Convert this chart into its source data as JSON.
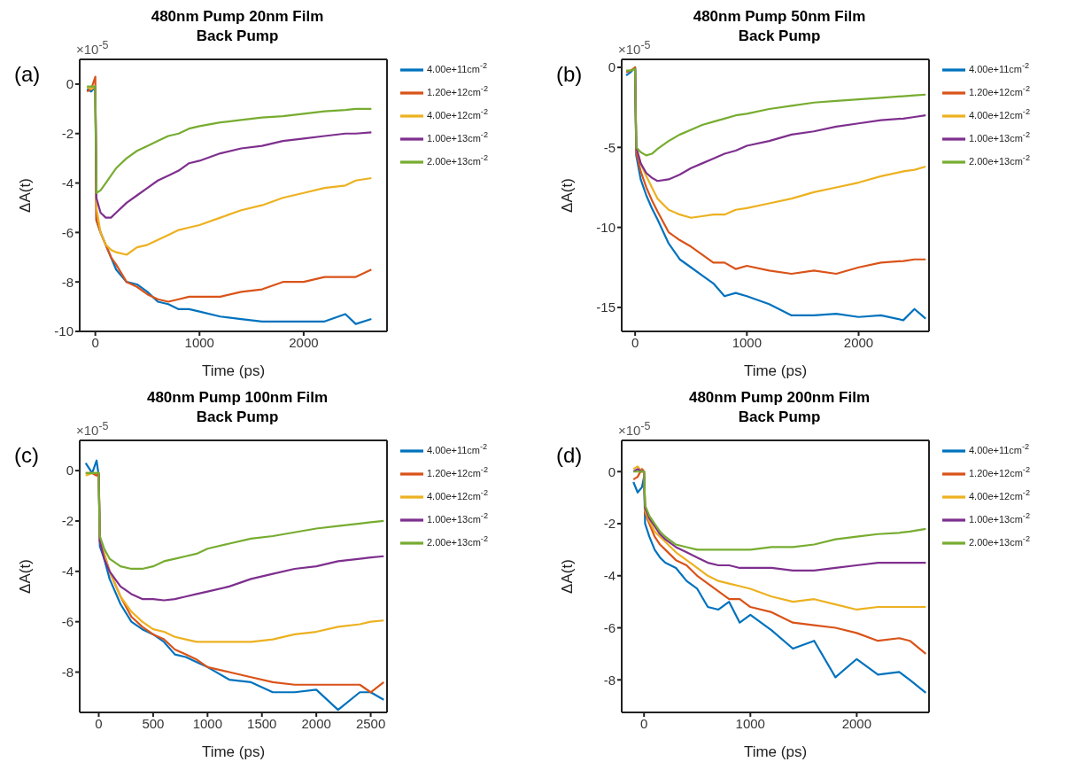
{
  "chart_data": [
    {
      "type": "line",
      "title": "480nm Pump 20nm Film",
      "subtitle": "Back Pump",
      "xlabel": "Time (ps)",
      "ylabel": "ΔA(t)",
      "annotations": [
        "(a)",
        "×10$^{-5}$"
      ],
      "legend": "right",
      "xlim": [
        -150,
        2800
      ],
      "xticks": [
        0,
        1000,
        2000
      ],
      "ylim": [
        -10,
        1
      ],
      "yticks": [
        -10,
        -8,
        -6,
        -4,
        -2,
        0
      ],
      "x": [
        -80,
        -40,
        0,
        10,
        50,
        100,
        150,
        200,
        300,
        400,
        500,
        600,
        700,
        800,
        900,
        1000,
        1200,
        1400,
        1600,
        1800,
        2000,
        2200,
        2400,
        2500,
        2650
      ],
      "series": [
        {
          "name": "4.00e+11cm$^{-2}$",
          "color": "#0072bd",
          "values": [
            -0.2,
            -0.3,
            -0.1,
            -5.5,
            -6.0,
            -6.5,
            -7.0,
            -7.5,
            -8.0,
            -8.1,
            -8.4,
            -8.8,
            -8.9,
            -9.1,
            -9.1,
            -9.2,
            -9.4,
            -9.5,
            -9.6,
            -9.6,
            -9.6,
            -9.6,
            -9.3,
            -9.7,
            -9.5
          ]
        },
        {
          "name": "1.20e+12cm$^{-2}$",
          "color": "#d95319",
          "values": [
            -0.3,
            -0.2,
            0.3,
            -5.5,
            -6.0,
            -6.5,
            -7.0,
            -7.3,
            -8.0,
            -8.2,
            -8.5,
            -8.7,
            -8.8,
            -8.7,
            -8.6,
            -8.6,
            -8.6,
            -8.4,
            -8.3,
            -8.0,
            -8.0,
            -7.8,
            -7.8,
            -7.8,
            -7.5
          ]
        },
        {
          "name": "4.00e+12cm$^{-2}$",
          "color": "#edb120",
          "values": [
            -0.1,
            -0.2,
            -0.1,
            -5.0,
            -6.0,
            -6.5,
            -6.7,
            -6.8,
            -6.9,
            -6.6,
            -6.5,
            -6.3,
            -6.1,
            -5.9,
            -5.8,
            -5.7,
            -5.4,
            -5.1,
            -4.9,
            -4.6,
            -4.4,
            -4.2,
            -4.1,
            -3.9,
            -3.8
          ]
        },
        {
          "name": "1.00e+13cm$^{-2}$",
          "color": "#7e2f8e",
          "values": [
            null,
            null,
            -0.1,
            -4.6,
            -5.2,
            -5.4,
            -5.4,
            -5.2,
            -4.8,
            -4.5,
            -4.2,
            -3.9,
            -3.7,
            -3.5,
            -3.2,
            -3.1,
            -2.8,
            -2.6,
            -2.5,
            -2.3,
            -2.2,
            -2.1,
            -2.0,
            -2.0,
            -1.95
          ]
        },
        {
          "name": "2.00e+13cm$^{-2}$",
          "color": "#77ac30",
          "values": [
            -0.1,
            -0.1,
            -0.1,
            -4.4,
            -4.3,
            -4.0,
            -3.7,
            -3.4,
            -3.0,
            -2.7,
            -2.5,
            -2.3,
            -2.1,
            -2.0,
            -1.8,
            -1.7,
            -1.55,
            -1.45,
            -1.35,
            -1.3,
            -1.2,
            -1.1,
            -1.05,
            -1.0,
            -1.0
          ]
        }
      ]
    },
    {
      "type": "line",
      "title": "480nm Pump 50nm Film",
      "subtitle": "Back Pump",
      "xlabel": "Time (ps)",
      "ylabel": "ΔA(t)",
      "annotations": [
        "(b)",
        "×10$^{-5}$"
      ],
      "legend": "right",
      "xlim": [
        -120,
        2630
      ],
      "xticks": [
        0,
        1000,
        2000
      ],
      "ylim": [
        -16.5,
        0.5
      ],
      "yticks": [
        -15,
        -10,
        -5,
        0
      ],
      "x": [
        -80,
        -40,
        0,
        10,
        50,
        100,
        150,
        200,
        300,
        400,
        500,
        600,
        700,
        800,
        900,
        1000,
        1200,
        1400,
        1600,
        1800,
        2000,
        2200,
        2400,
        2500,
        2600
      ],
      "series": [
        {
          "name": "4.00e+11cm$^{-2}$",
          "color": "#0072bd",
          "values": [
            -0.5,
            -0.3,
            0,
            -5.5,
            -7,
            -8,
            -8.8,
            -9.5,
            -11,
            -12,
            -12.5,
            -13,
            -13.5,
            -14.3,
            -14.1,
            -14.3,
            -14.8,
            -15.5,
            -15.5,
            -15.4,
            -15.6,
            -15.5,
            -15.8,
            -15.1,
            -15.7
          ]
        },
        {
          "name": "1.20e+12cm$^{-2}$",
          "color": "#d95319",
          "values": [
            -0.3,
            -0.2,
            0,
            -5.3,
            -6.5,
            -7.5,
            -8.3,
            -9,
            -10.3,
            -10.8,
            -11.2,
            -11.7,
            -12.2,
            -12.2,
            -12.6,
            -12.4,
            -12.7,
            -12.9,
            -12.7,
            -12.9,
            -12.5,
            -12.2,
            -12.1,
            -12.0,
            -12.0
          ]
        },
        {
          "name": "4.00e+12cm$^{-2}$",
          "color": "#edb120",
          "values": [
            null,
            null,
            null,
            -5,
            -6,
            -6.8,
            -7.5,
            -8.2,
            -8.9,
            -9.2,
            -9.4,
            -9.3,
            -9.2,
            -9.2,
            -8.9,
            -8.8,
            -8.5,
            -8.2,
            -7.8,
            -7.5,
            -7.2,
            -6.8,
            -6.5,
            -6.4,
            -6.2
          ]
        },
        {
          "name": "1.00e+13cm$^{-2}$",
          "color": "#7e2f8e",
          "values": [
            null,
            null,
            -0.1,
            -5,
            -6,
            -6.6,
            -6.9,
            -7.1,
            -7.0,
            -6.7,
            -6.3,
            -6.0,
            -5.7,
            -5.4,
            -5.2,
            -4.9,
            -4.6,
            -4.2,
            -4.0,
            -3.7,
            -3.5,
            -3.3,
            -3.2,
            -3.1,
            -3.0
          ]
        },
        {
          "name": "2.00e+13cm$^{-2}$",
          "color": "#77ac30",
          "values": [
            -0.2,
            -0.2,
            -0.1,
            -5,
            -5.3,
            -5.5,
            -5.4,
            -5.1,
            -4.6,
            -4.2,
            -3.9,
            -3.6,
            -3.4,
            -3.2,
            -3.0,
            -2.9,
            -2.6,
            -2.4,
            -2.2,
            -2.1,
            -2.0,
            -1.9,
            -1.8,
            -1.75,
            -1.7
          ]
        }
      ]
    },
    {
      "type": "line",
      "title": "480nm Pump 100nm Film",
      "subtitle": "Back Pump",
      "xlabel": "Time (ps)",
      "ylabel": "ΔA(t)",
      "annotations": [
        "(c)",
        "×10$^{-5}$"
      ],
      "legend": "right",
      "xlim": [
        -175,
        2650
      ],
      "xticks": [
        0,
        500,
        1000,
        1500,
        2000,
        2500
      ],
      "ylim": [
        -9.6,
        1.2
      ],
      "yticks": [
        -8,
        -6,
        -4,
        -2,
        0
      ],
      "x": [
        -120,
        -60,
        -20,
        0,
        10,
        50,
        100,
        200,
        300,
        400,
        500,
        600,
        700,
        800,
        900,
        1000,
        1200,
        1400,
        1600,
        1800,
        2000,
        2200,
        2400,
        2500,
        2620
      ],
      "series": [
        {
          "name": "4.00e+11cm$^{-2}$",
          "color": "#0072bd",
          "values": [
            0.3,
            -0.1,
            0.4,
            -0.2,
            -3,
            -3.5,
            -4.3,
            -5.3,
            -6.0,
            -6.3,
            -6.5,
            -6.8,
            -7.3,
            -7.4,
            -7.6,
            -7.8,
            -8.3,
            -8.4,
            -8.8,
            -8.8,
            -8.7,
            -9.5,
            -8.8,
            -8.8,
            -9.1
          ]
        },
        {
          "name": "1.20e+12cm$^{-2}$",
          "color": "#d95319",
          "values": [
            -0.1,
            -0.1,
            -0.2,
            -0.1,
            -2.8,
            -3.3,
            -4.0,
            -5.0,
            -5.8,
            -6.2,
            -6.5,
            -6.7,
            -7.1,
            -7.3,
            -7.5,
            -7.8,
            -8.0,
            -8.2,
            -8.4,
            -8.5,
            -8.5,
            -8.5,
            -8.5,
            -8.8,
            -8.4
          ]
        },
        {
          "name": "4.00e+12cm$^{-2}$",
          "color": "#edb120",
          "values": [
            -0.2,
            -0.1,
            -0.1,
            -0.1,
            -2.8,
            -3.3,
            -4.0,
            -5.0,
            -5.6,
            -6.0,
            -6.3,
            -6.4,
            -6.6,
            -6.7,
            -6.8,
            -6.8,
            -6.8,
            -6.8,
            -6.7,
            -6.5,
            -6.4,
            -6.2,
            -6.1,
            -6.0,
            -5.95
          ]
        },
        {
          "name": "1.00e+13cm$^{-2}$",
          "color": "#7e2f8e",
          "values": [
            null,
            null,
            null,
            -0.1,
            -2.8,
            -3.5,
            -4.0,
            -4.6,
            -4.9,
            -5.1,
            -5.1,
            -5.15,
            -5.1,
            -5.0,
            -4.9,
            -4.8,
            -4.6,
            -4.3,
            -4.1,
            -3.9,
            -3.8,
            -3.6,
            -3.5,
            -3.45,
            -3.4
          ]
        },
        {
          "name": "2.00e+13cm$^{-2}$",
          "color": "#77ac30",
          "values": [
            -0.1,
            -0.1,
            -0.1,
            -0.1,
            -2.6,
            -3.1,
            -3.5,
            -3.8,
            -3.9,
            -3.9,
            -3.8,
            -3.6,
            -3.5,
            -3.4,
            -3.3,
            -3.1,
            -2.9,
            -2.7,
            -2.6,
            -2.45,
            -2.3,
            -2.2,
            -2.1,
            -2.05,
            -2.0
          ]
        }
      ]
    },
    {
      "type": "line",
      "title": "480nm Pump 200nm Film",
      "subtitle": "Back Pump",
      "xlabel": "Time (ps)",
      "ylabel": "ΔA(t)",
      "annotations": [
        "(d)",
        "×10$^{-5}$"
      ],
      "legend": "right",
      "xlim": [
        -210,
        2680
      ],
      "xticks": [
        0,
        1000,
        2000
      ],
      "ylim": [
        -9.25,
        1.2
      ],
      "yticks": [
        -8,
        -6,
        -4,
        -2,
        0
      ],
      "x": [
        -100,
        -60,
        -20,
        0,
        10,
        50,
        100,
        150,
        200,
        300,
        400,
        500,
        600,
        700,
        800,
        900,
        1000,
        1200,
        1400,
        1600,
        1800,
        2000,
        2200,
        2400,
        2500,
        2650
      ],
      "series": [
        {
          "name": "4.00e+11cm$^{-2}$",
          "color": "#0072bd",
          "values": [
            -0.4,
            -0.8,
            -0.6,
            -0.2,
            -2,
            -2.5,
            -3.0,
            -3.3,
            -3.5,
            -3.7,
            -4.2,
            -4.5,
            -5.2,
            -5.3,
            -5.0,
            -5.8,
            -5.5,
            -6.1,
            -6.8,
            -6.5,
            -7.9,
            -7.2,
            -7.8,
            -7.7,
            -8.0,
            -8.5
          ]
        },
        {
          "name": "1.20e+12cm$^{-2}$",
          "color": "#d95319",
          "values": [
            -0.3,
            -0.2,
            0.1,
            0,
            -1.6,
            -2.0,
            -2.5,
            -2.8,
            -3.0,
            -3.4,
            -3.6,
            -4.0,
            -4.3,
            -4.6,
            -4.9,
            -4.9,
            -5.2,
            -5.4,
            -5.8,
            -5.9,
            -6.0,
            -6.2,
            -6.5,
            -6.4,
            -6.5,
            -7.0
          ]
        },
        {
          "name": "4.00e+12cm$^{-2}$",
          "color": "#edb120",
          "values": [
            0.1,
            0.2,
            0,
            0,
            -1.5,
            -1.9,
            -2.3,
            -2.5,
            -2.7,
            -3.1,
            -3.4,
            -3.7,
            -4.0,
            -4.2,
            -4.3,
            -4.4,
            -4.5,
            -4.8,
            -5.0,
            -4.9,
            -5.1,
            -5.3,
            -5.2,
            -5.2,
            -5.2,
            -5.2
          ]
        },
        {
          "name": "1.00e+13cm$^{-2}$",
          "color": "#7e2f8e",
          "values": [
            0,
            0.1,
            0,
            0,
            -1.4,
            -1.8,
            -2.1,
            -2.4,
            -2.6,
            -2.9,
            -3.1,
            -3.3,
            -3.5,
            -3.6,
            -3.6,
            -3.7,
            -3.7,
            -3.7,
            -3.8,
            -3.8,
            -3.7,
            -3.6,
            -3.5,
            -3.5,
            -3.5,
            -3.5
          ]
        },
        {
          "name": "2.00e+13cm$^{-2}$",
          "color": "#77ac30",
          "values": [
            0,
            0,
            0,
            0,
            -1.3,
            -1.7,
            -2.0,
            -2.3,
            -2.5,
            -2.8,
            -2.9,
            -3.0,
            -3.0,
            -3.0,
            -3.0,
            -3.0,
            -3.0,
            -2.9,
            -2.9,
            -2.8,
            -2.6,
            -2.5,
            -2.4,
            -2.35,
            -2.3,
            -2.2
          ]
        }
      ]
    }
  ]
}
